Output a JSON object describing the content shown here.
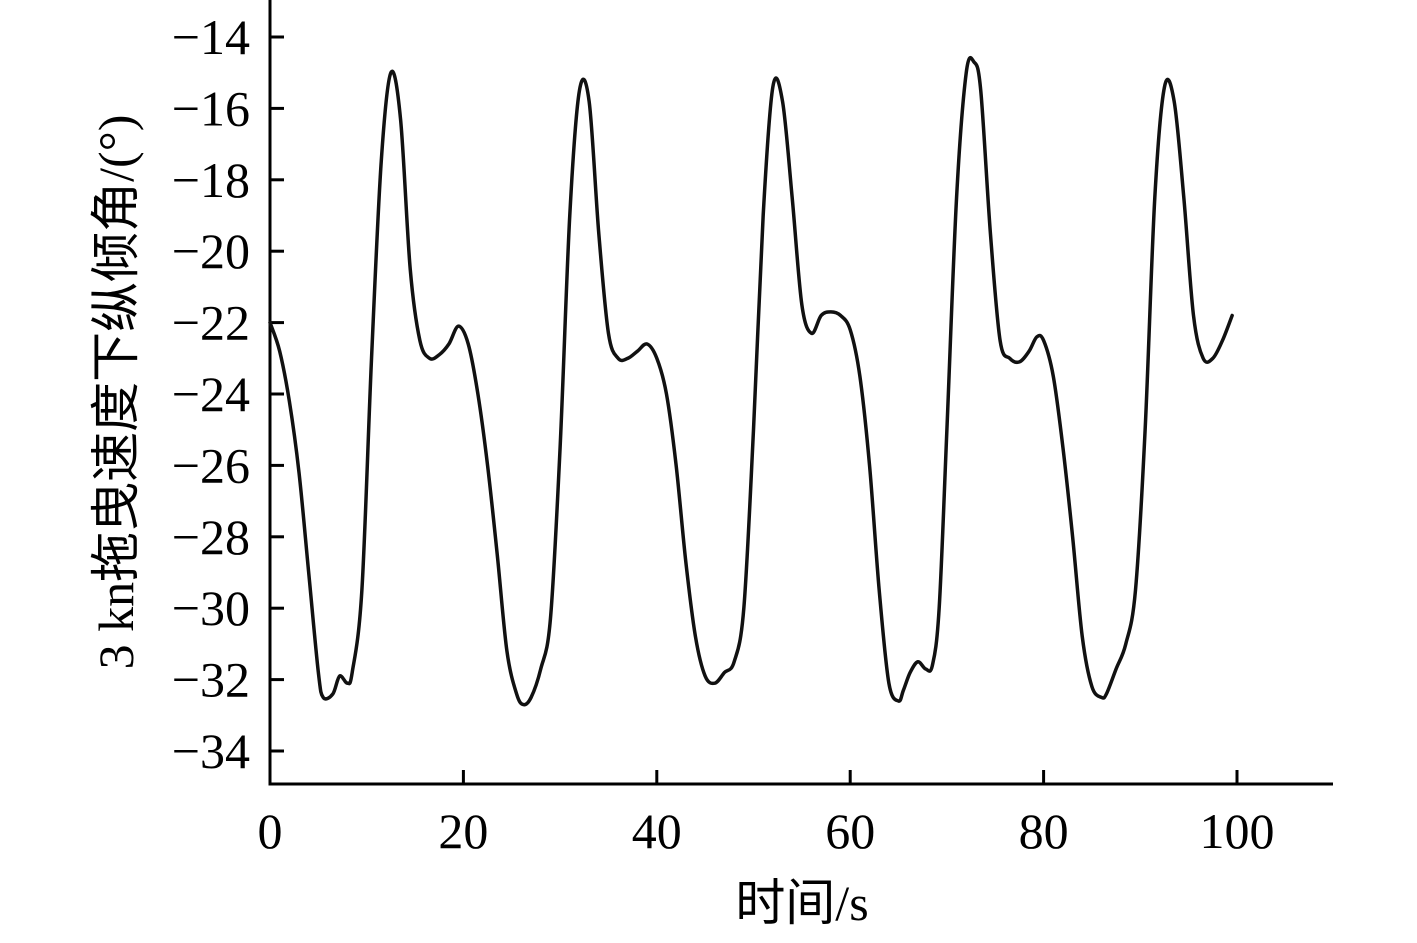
{
  "chart_data": {
    "type": "line",
    "title": "",
    "xlabel": "时间/s",
    "ylabel": "3 kn拖曳速度下纵倾角/(°)",
    "xlim": [
      0,
      110
    ],
    "ylim": [
      -35,
      -13
    ],
    "xticks": [
      0,
      20,
      40,
      60,
      80,
      100
    ],
    "yticks": [
      -34,
      -32,
      -30,
      -28,
      -26,
      -24,
      -22,
      -20,
      -18,
      -16,
      -14
    ],
    "xtick_labels": [
      "0",
      "20",
      "40",
      "60",
      "80",
      "100"
    ],
    "ytick_labels": [
      "−34",
      "−32",
      "−30",
      "−28",
      "−26",
      "−24",
      "−22",
      "−20",
      "−18",
      "−16",
      "−14"
    ],
    "grid": false,
    "line_color": "#111111",
    "series": [
      {
        "x": [
          0,
          1,
          2,
          3,
          4,
          5,
          5.5,
          6.5,
          7.2,
          8,
          8.5,
          9.5,
          10.5,
          11.5,
          12.5,
          13.5,
          14.5,
          15.5,
          16.5,
          17.5,
          18.5,
          19.5,
          20.5,
          21.5,
          22.5,
          23.5,
          24.5,
          25.5,
          26.2,
          27,
          28,
          29,
          30,
          31,
          32,
          33,
          34,
          35,
          36,
          37,
          38,
          39,
          40,
          41,
          42,
          43,
          44,
          45,
          46,
          47,
          48,
          49,
          50,
          51,
          52,
          53,
          54,
          55,
          56,
          57,
          58,
          59,
          60,
          61,
          62,
          63,
          64,
          65,
          65.5,
          66.2,
          67,
          67.8,
          68.5,
          69.2,
          70,
          71,
          72,
          72.8,
          73.5,
          74.5,
          75.5,
          76.5,
          77.5,
          78.5,
          79.3,
          80,
          81,
          82,
          83,
          84,
          85,
          86,
          86.5,
          87.5,
          88.5,
          89.5,
          90.5,
          91.5,
          92.5,
          93.5,
          94.5,
          95.5,
          96.5,
          97.5,
          98.5,
          99.5
        ],
        "y": [
          -22,
          -22.8,
          -24.2,
          -26.2,
          -29,
          -31.8,
          -32.5,
          -32.4,
          -31.9,
          -32.1,
          -31.8,
          -29.5,
          -23,
          -17.5,
          -15,
          -16.3,
          -20.5,
          -22.5,
          -23,
          -22.9,
          -22.6,
          -22.1,
          -22.6,
          -24,
          -26,
          -28.5,
          -31.2,
          -32.4,
          -32.7,
          -32.5,
          -31.7,
          -30.3,
          -25.5,
          -19,
          -15.5,
          -15.8,
          -19.5,
          -22.3,
          -23,
          -23,
          -22.8,
          -22.6,
          -23,
          -24,
          -26,
          -28.7,
          -30.8,
          -31.9,
          -32.1,
          -31.8,
          -31.5,
          -30,
          -25,
          -19,
          -15.4,
          -15.8,
          -18.5,
          -21.5,
          -22.3,
          -21.8,
          -21.7,
          -21.8,
          -22.2,
          -23.5,
          -26,
          -29.5,
          -32.1,
          -32.6,
          -32.3,
          -31.8,
          -31.5,
          -31.7,
          -31.6,
          -30,
          -25,
          -18.5,
          -15,
          -14.7,
          -15.5,
          -19.5,
          -22.5,
          -23,
          -23.1,
          -22.8,
          -22.4,
          -22.5,
          -23.5,
          -25.5,
          -28,
          -30.8,
          -32.2,
          -32.5,
          -32.4,
          -31.7,
          -31,
          -29.5,
          -25,
          -18.5,
          -15.4,
          -15.8,
          -18.5,
          -21.8,
          -23,
          -23,
          -22.5,
          -21.8
        ]
      }
    ]
  }
}
